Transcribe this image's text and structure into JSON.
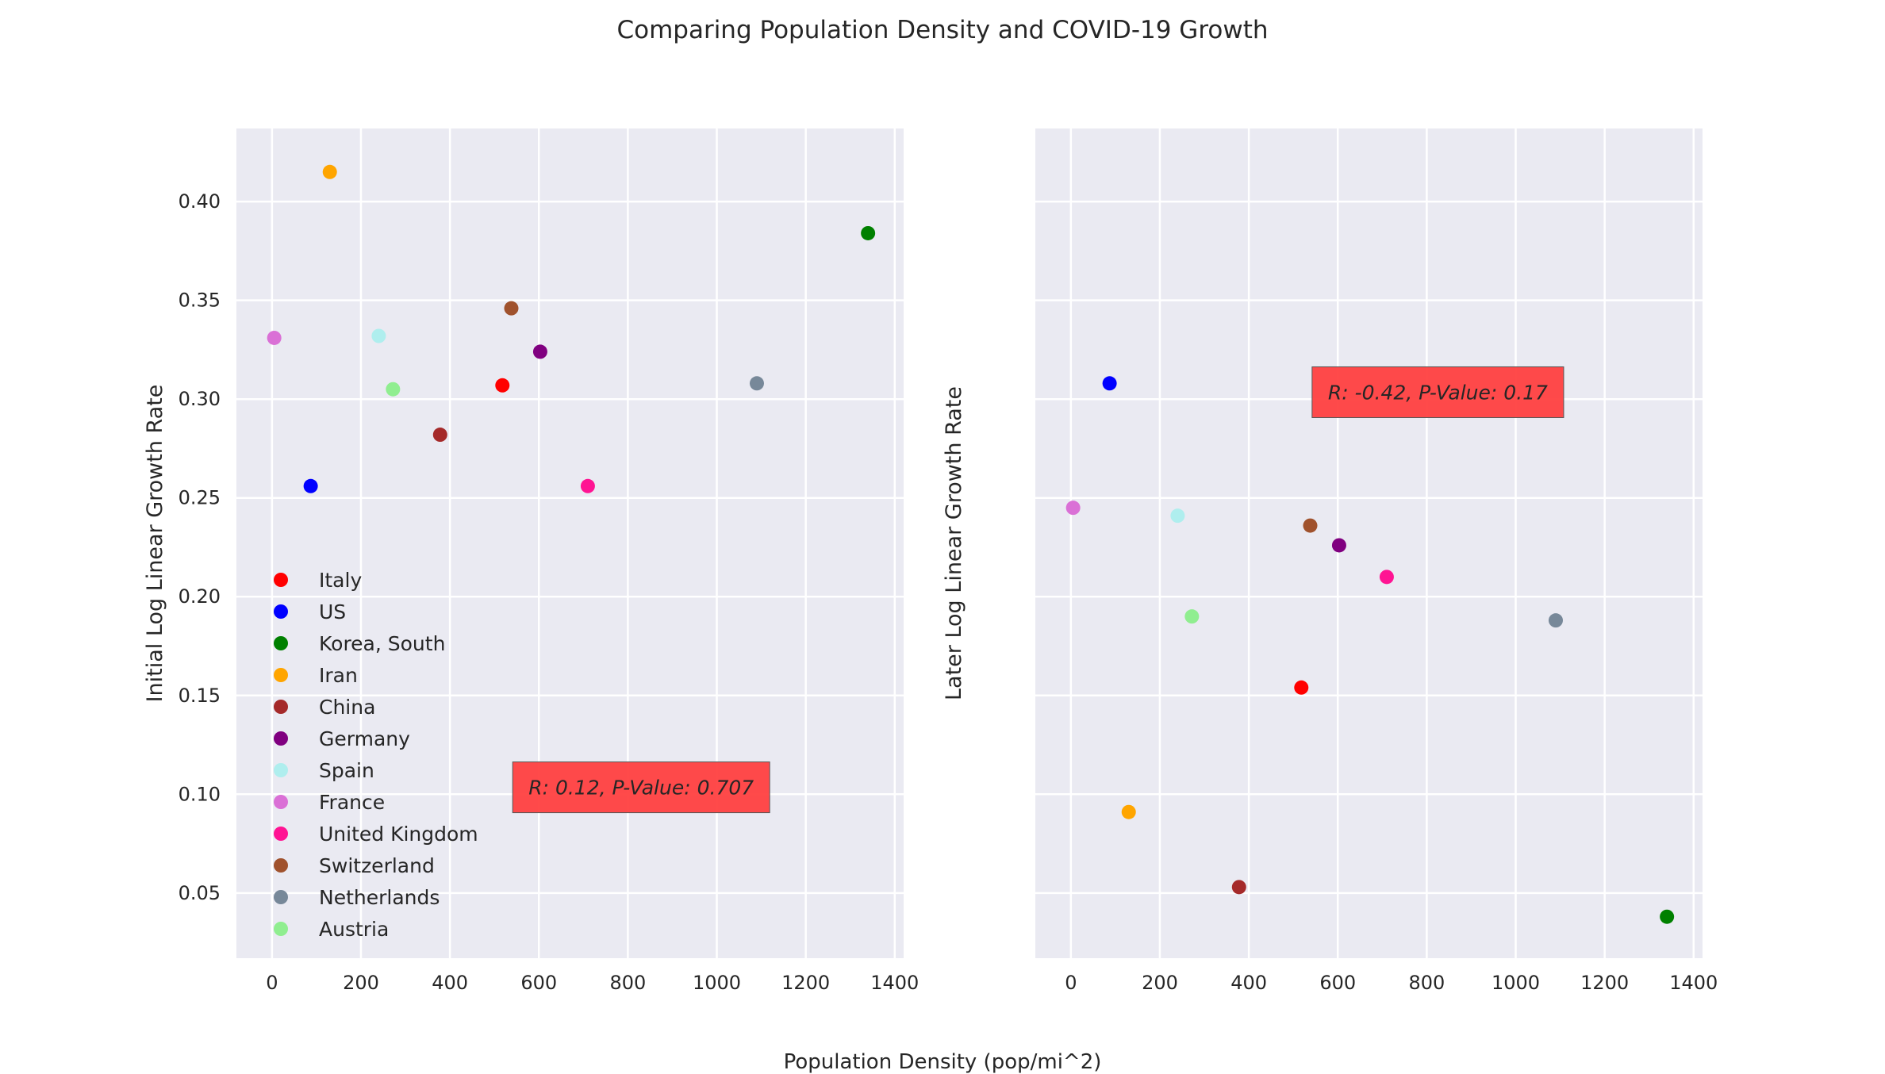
{
  "figure": {
    "title": "Comparing Population Density and COVID-19 Growth",
    "xlabel": "Population Density (pop/mi^2)",
    "background": "#ffffff",
    "axes_background": "#eaeaf2",
    "grid_color": "#ffffff"
  },
  "chart_data": [
    {
      "type": "scatter",
      "title": "",
      "xlabel": "",
      "ylabel": "Initial Log Linear Growth Rate",
      "xlim": [
        -80,
        1420
      ],
      "ylim": [
        0.017,
        0.437
      ],
      "xticks": [
        0,
        200,
        400,
        600,
        800,
        1000,
        1200,
        1400
      ],
      "yticks": [
        0.05,
        0.1,
        0.15,
        0.2,
        0.25,
        0.3,
        0.35,
        0.4
      ],
      "ytick_labels": [
        "0.05",
        "0.10",
        "0.15",
        "0.20",
        "0.25",
        "0.30",
        "0.35",
        "0.40"
      ],
      "grid": true,
      "legend": "lower-left",
      "annotation": {
        "text": "R: 0.12, P-Value: 0.707",
        "x": 830,
        "y": 0.1035,
        "color": "#ff4040"
      },
      "series": [
        {
          "name": "Italy",
          "color": "#ff0000",
          "x": 518,
          "y": 0.307
        },
        {
          "name": "US",
          "color": "#0000ff",
          "x": 87,
          "y": 0.256
        },
        {
          "name": "Korea, South",
          "color": "#008000",
          "x": 1340,
          "y": 0.384
        },
        {
          "name": "Iran",
          "color": "#ffa500",
          "x": 130,
          "y": 0.415
        },
        {
          "name": "China",
          "color": "#a52a2a",
          "x": 378,
          "y": 0.282
        },
        {
          "name": "Germany",
          "color": "#800080",
          "x": 603,
          "y": 0.324
        },
        {
          "name": "Spain",
          "color": "#afeeee",
          "x": 240,
          "y": 0.332
        },
        {
          "name": "France",
          "color": "#da70d6",
          "x": 5,
          "y": 0.331
        },
        {
          "name": "United Kingdom",
          "color": "#ff1493",
          "x": 710,
          "y": 0.256
        },
        {
          "name": "Switzerland",
          "color": "#a0522d",
          "x": 538,
          "y": 0.346
        },
        {
          "name": "Netherlands",
          "color": "#778899",
          "x": 1090,
          "y": 0.308
        },
        {
          "name": "Austria",
          "color": "#90ee90",
          "x": 272,
          "y": 0.305
        }
      ]
    },
    {
      "type": "scatter",
      "title": "",
      "xlabel": "",
      "ylabel": "Later Log Linear Growth Rate",
      "xlim": [
        -80,
        1420
      ],
      "ylim": [
        0.017,
        0.437
      ],
      "xticks": [
        0,
        200,
        400,
        600,
        800,
        1000,
        1200,
        1400
      ],
      "yticks": [
        0.05,
        0.1,
        0.15,
        0.2,
        0.25,
        0.3,
        0.35,
        0.4
      ],
      "ytick_labels": [],
      "grid": true,
      "annotation": {
        "text": "R: -0.42, P-Value: 0.17",
        "x": 825,
        "y": 0.3035,
        "color": "#ff4040"
      },
      "series": [
        {
          "name": "Italy",
          "color": "#ff0000",
          "x": 518,
          "y": 0.154
        },
        {
          "name": "US",
          "color": "#0000ff",
          "x": 87,
          "y": 0.308
        },
        {
          "name": "Korea, South",
          "color": "#008000",
          "x": 1340,
          "y": 0.038
        },
        {
          "name": "Iran",
          "color": "#ffa500",
          "x": 130,
          "y": 0.091
        },
        {
          "name": "China",
          "color": "#a52a2a",
          "x": 378,
          "y": 0.053
        },
        {
          "name": "Germany",
          "color": "#800080",
          "x": 603,
          "y": 0.226
        },
        {
          "name": "Spain",
          "color": "#afeeee",
          "x": 240,
          "y": 0.241
        },
        {
          "name": "France",
          "color": "#da70d6",
          "x": 5,
          "y": 0.245
        },
        {
          "name": "United Kingdom",
          "color": "#ff1493",
          "x": 710,
          "y": 0.21
        },
        {
          "name": "Switzerland",
          "color": "#a0522d",
          "x": 538,
          "y": 0.236
        },
        {
          "name": "Netherlands",
          "color": "#778899",
          "x": 1090,
          "y": 0.188
        },
        {
          "name": "Austria",
          "color": "#90ee90",
          "x": 272,
          "y": 0.19
        }
      ]
    }
  ]
}
